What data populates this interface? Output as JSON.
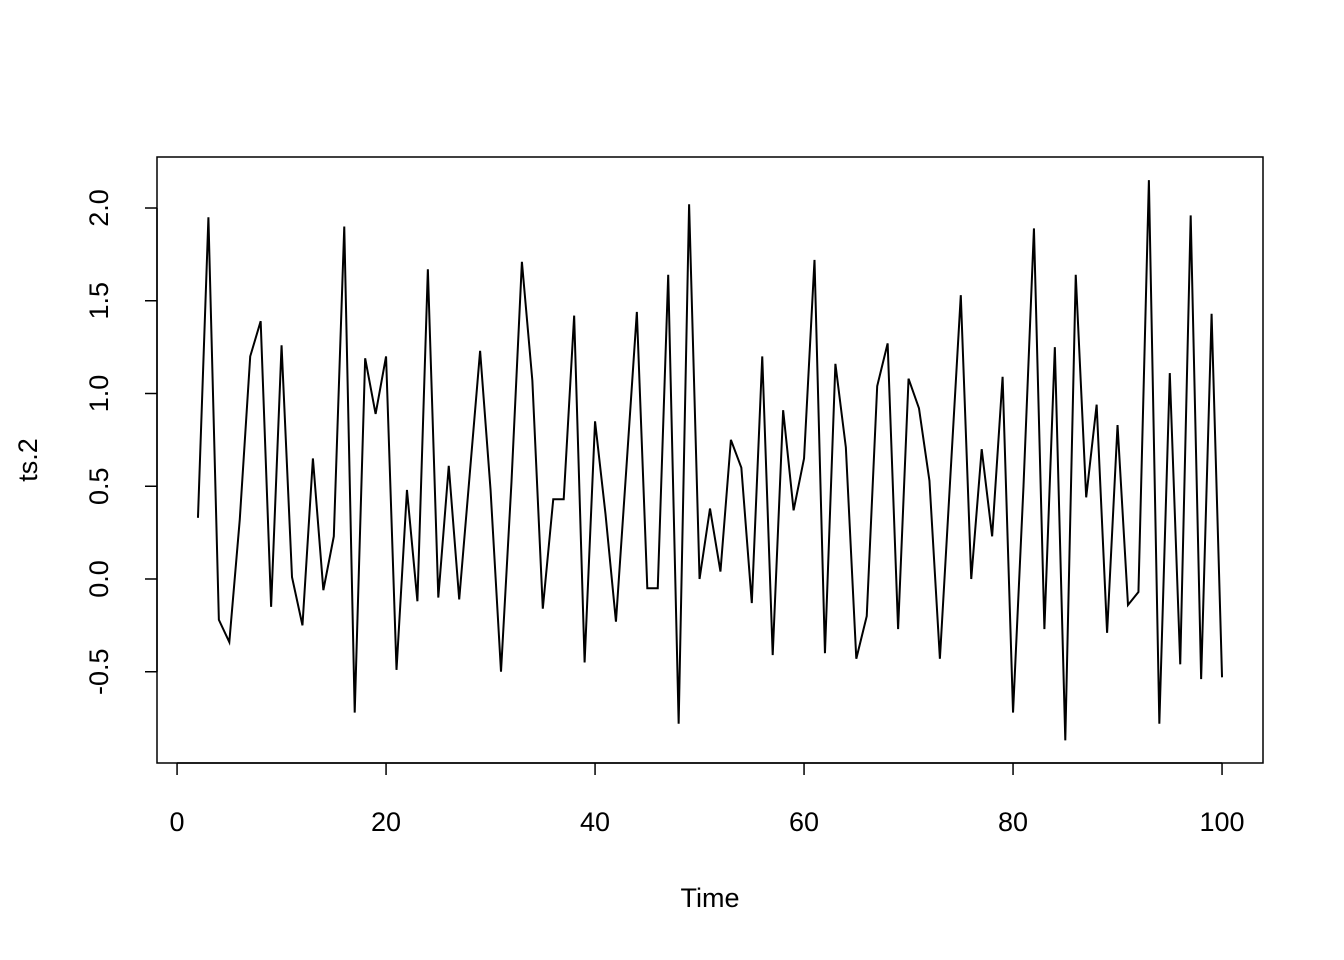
{
  "chart_data": {
    "type": "line",
    "xlabel": "Time",
    "ylabel": "ts.2",
    "x": [
      2,
      3,
      4,
      5,
      6,
      7,
      8,
      9,
      10,
      11,
      12,
      13,
      14,
      15,
      16,
      17,
      18,
      19,
      20,
      21,
      22,
      23,
      24,
      25,
      26,
      27,
      28,
      29,
      30,
      31,
      32,
      33,
      34,
      35,
      36,
      37,
      38,
      39,
      40,
      41,
      42,
      43,
      44,
      45,
      46,
      47,
      48,
      49,
      50,
      51,
      52,
      53,
      54,
      55,
      56,
      57,
      58,
      59,
      60,
      61,
      62,
      63,
      64,
      65,
      66,
      67,
      68,
      69,
      70,
      71,
      72,
      73,
      74,
      75,
      76,
      77,
      78,
      79,
      80,
      81,
      82,
      83,
      84,
      85,
      86,
      87,
      88,
      89,
      90,
      91,
      92,
      93,
      94,
      95,
      96,
      97,
      98,
      99,
      100
    ],
    "series": [
      {
        "color": "#000000",
        "values": [
          0.33,
          1.95,
          -0.22,
          -0.34,
          0.32,
          1.2,
          1.39,
          -0.15,
          1.26,
          0.01,
          -0.25,
          0.65,
          -0.06,
          0.23,
          1.9,
          -0.72,
          1.19,
          0.89,
          1.2,
          -0.49,
          0.48,
          -0.12,
          1.67,
          -0.1,
          0.61,
          -0.11,
          0.56,
          1.23,
          0.48,
          -0.5,
          0.52,
          1.71,
          1.07,
          -0.16,
          0.43,
          0.43,
          1.42,
          -0.45,
          0.85,
          0.35,
          -0.23,
          0.6,
          1.44,
          -0.05,
          -0.05,
          1.64,
          -0.78,
          2.02,
          0.0,
          0.38,
          0.04,
          0.75,
          0.6,
          -0.13,
          1.2,
          -0.41,
          0.91,
          0.37,
          0.65,
          1.72,
          -0.4,
          1.16,
          0.71,
          -0.43,
          -0.2,
          1.04,
          1.27,
          -0.27,
          1.08,
          0.92,
          0.53,
          -0.43,
          0.55,
          1.53,
          0.0,
          0.7,
          0.23,
          1.09,
          -0.72,
          0.5,
          1.89,
          -0.27,
          1.25,
          -0.87,
          1.64,
          0.44,
          0.94,
          -0.29,
          0.83,
          -0.14,
          -0.07,
          2.15,
          -0.78,
          1.11,
          -0.46,
          1.96,
          -0.54,
          1.43,
          -0.53
        ]
      }
    ],
    "xlim": [
      -1.92,
      103.92
    ],
    "xticks": [
      0,
      20,
      40,
      60,
      80,
      100
    ],
    "ylim": [
      -0.992,
      2.275
    ],
    "yticks": [
      -0.5,
      {
        "value": 0,
        "label": "0.0"
      },
      0.5,
      {
        "value": 1,
        "label": "1.0"
      },
      1.5,
      {
        "value": 2,
        "label": "2.0"
      }
    ]
  }
}
